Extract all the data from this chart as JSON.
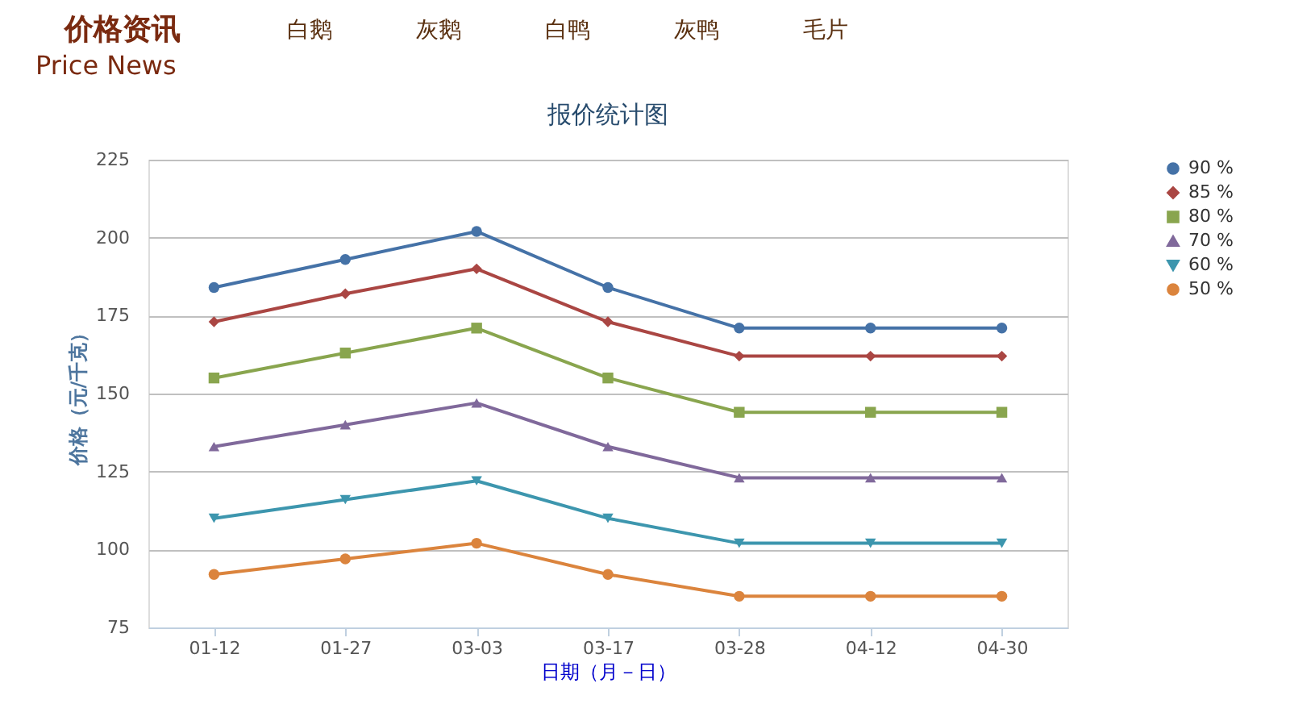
{
  "chart_data": {
    "type": "line",
    "title": "报价统计图",
    "xlabel": "日期（月－日）",
    "ylabel": "价格（元/千克）",
    "annotations": [
      "价格资讯",
      "Price News",
      "白鹅",
      "灰鹅",
      "白鸭",
      "灰鸭",
      "毛片"
    ],
    "categories": [
      "01-12",
      "01-27",
      "03-03",
      "03-17",
      "03-28",
      "04-12",
      "04-30"
    ],
    "ylim": [
      75,
      225
    ],
    "yticks": [
      75,
      100,
      125,
      150,
      175,
      200,
      225
    ],
    "grid": "y",
    "legend": "right",
    "series": [
      {
        "name": "90 %",
        "color": "#4572a7",
        "marker": "circle",
        "values": [
          184,
          193,
          202,
          184,
          171,
          171,
          171
        ]
      },
      {
        "name": "85 %",
        "color": "#aa4643",
        "marker": "diamond",
        "values": [
          173,
          182,
          190,
          173,
          162,
          162,
          162
        ]
      },
      {
        "name": "80 %",
        "color": "#89a54e",
        "marker": "square",
        "values": [
          155,
          163,
          171,
          155,
          144,
          144,
          144
        ]
      },
      {
        "name": "70 %",
        "color": "#80699b",
        "marker": "triangle",
        "values": [
          133,
          140,
          147,
          133,
          123,
          123,
          123
        ]
      },
      {
        "name": "60 %",
        "color": "#3d96ae",
        "marker": "triangle-down",
        "values": [
          110,
          116,
          122,
          110,
          102,
          102,
          102
        ]
      },
      {
        "name": "50 %",
        "color": "#db843d",
        "marker": "circle",
        "values": [
          92,
          97,
          102,
          92,
          85,
          85,
          85
        ]
      }
    ]
  }
}
